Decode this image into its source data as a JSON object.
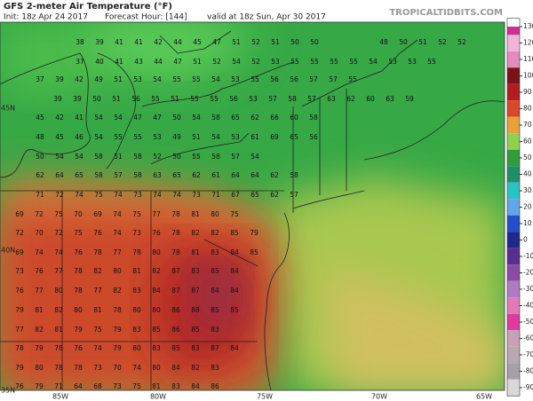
{
  "header": {
    "title": "GFS 2-meter Air Temperature (°F)",
    "init": "Init: 18z Apr 24 2017",
    "forecast_hour": "Forecast Hour: [144]",
    "valid": "valid at 18z Sun, Apr 30 2017",
    "watermark": "TROPICALTIDBITS.COM"
  },
  "axes": {
    "lat_labels": [
      "45N",
      "40N",
      "35N"
    ],
    "lon_labels": [
      "85W",
      "80W",
      "75W",
      "70W",
      "65W"
    ]
  },
  "colorbar": {
    "ticks": [
      130,
      120,
      110,
      100,
      90,
      80,
      70,
      60,
      50,
      40,
      30,
      20,
      10,
      0,
      -10,
      -20,
      -30,
      -40,
      -50,
      -60,
      -70,
      -80,
      -90
    ],
    "colors": [
      "#c9338f",
      "#f2b3da",
      "#e58ac0",
      "#7a1414",
      "#b31d1d",
      "#d9482b",
      "#e8a13a",
      "#8ed14e",
      "#2f9e3a",
      "#1f8f6a",
      "#27c4c4",
      "#5fa8e8",
      "#2150c8",
      "#1d2a8a",
      "#5a2e8e",
      "#8a4aa8",
      "#b07ac4",
      "#e07ab8",
      "#e03aa0",
      "#c8a0b8",
      "#b8a8b0",
      "#a8a0a8",
      "#d8d8d8"
    ]
  },
  "stations": [
    [
      38,
      39,
      41,
      41,
      42,
      44,
      45,
      47,
      51,
      52,
      51,
      50,
      50
    ],
    [
      48,
      50,
      51,
      52,
      52
    ],
    [
      37,
      40,
      41,
      43,
      44,
      47,
      51,
      52,
      54,
      52,
      53,
      55,
      55,
      55,
      55,
      54,
      53,
      53,
      55
    ],
    [
      37,
      39,
      42,
      49,
      51,
      53,
      54,
      55,
      55,
      54,
      53,
      55,
      56,
      56,
      57,
      57,
      55
    ],
    [
      39,
      39,
      50,
      51,
      56,
      55,
      51,
      55,
      55,
      56,
      53,
      57,
      58,
      57,
      63,
      62,
      60,
      63,
      59
    ],
    [
      45,
      42,
      41,
      54,
      54,
      47,
      47,
      50,
      54,
      58,
      65,
      62,
      66,
      60,
      58
    ],
    [
      48,
      45,
      46,
      54,
      55,
      55,
      53,
      49,
      51,
      54,
      53,
      61,
      69,
      65,
      56
    ],
    [
      50,
      54,
      54,
      58,
      51,
      58,
      52,
      50,
      55,
      58,
      57,
      54
    ],
    [
      62,
      64,
      65,
      58,
      57,
      58,
      63,
      65,
      62,
      61,
      64,
      64,
      62,
      58
    ],
    [
      71,
      72,
      74,
      75,
      74,
      73,
      74,
      74,
      73,
      71,
      67,
      65,
      62,
      57
    ],
    [
      69,
      72,
      75,
      70,
      69,
      74,
      75,
      77,
      78,
      81,
      80,
      75
    ],
    [
      72,
      70,
      72,
      75,
      76,
      74,
      73,
      76,
      78,
      82,
      82,
      85,
      79
    ],
    [
      69,
      74,
      74,
      76,
      78,
      77,
      78,
      80,
      78,
      81,
      83,
      84,
      85
    ],
    [
      73,
      76,
      77,
      78,
      82,
      80,
      81,
      82,
      87,
      83,
      85,
      84
    ],
    [
      76,
      77,
      80,
      78,
      77,
      82,
      83,
      84,
      87,
      87,
      84,
      84
    ],
    [
      79,
      81,
      82,
      80,
      81,
      78,
      80,
      80,
      86,
      88,
      85,
      85
    ],
    [
      77,
      82,
      81,
      79,
      75,
      79,
      83,
      85,
      86,
      85,
      83
    ],
    [
      78,
      79,
      78,
      76,
      74,
      79,
      80,
      83,
      85,
      83,
      87,
      84
    ],
    [
      79,
      80,
      78,
      78,
      73,
      70,
      74,
      80,
      84,
      82,
      83
    ],
    [
      76,
      79,
      71,
      64,
      68,
      73,
      75,
      81,
      83,
      84,
      86
    ]
  ]
}
